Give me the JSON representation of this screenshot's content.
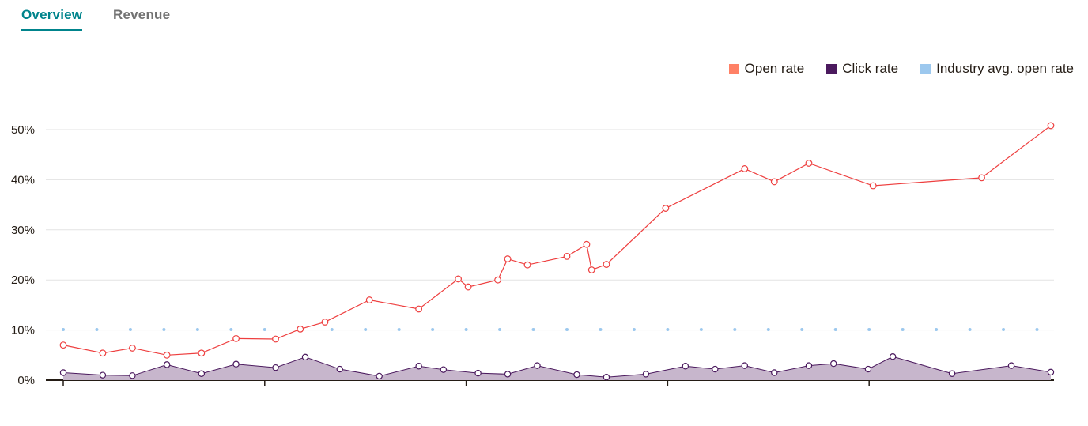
{
  "tabs": [
    {
      "label": "Overview",
      "active": true
    },
    {
      "label": "Revenue",
      "active": false
    }
  ],
  "colors": {
    "open_rate": "#ff8166",
    "open_rate_line": "#ee3f3f",
    "click_rate": "#4b1a5e",
    "click_fill": "#c7b6cc",
    "industry": "#9cc8ee"
  },
  "chart_data": {
    "type": "line",
    "legend_position": "top-right",
    "grid": true,
    "ylim": [
      0,
      50
    ],
    "yticks": [
      "0%",
      "10%",
      "20%",
      "30%",
      "40%",
      "50%"
    ],
    "ytick_values": [
      0,
      10,
      20,
      30,
      40,
      50
    ],
    "x_range": [
      0,
      100
    ],
    "x_major_ticks": [
      0,
      20.4,
      40.8,
      61.2,
      81.6
    ],
    "series": [
      {
        "name": "Open rate",
        "kind": "line",
        "x": [
          0,
          4,
          7,
          10.5,
          14,
          17.5,
          21.5,
          24,
          26.5,
          31,
          36,
          40,
          41,
          44,
          45,
          47,
          51,
          53,
          53.5,
          55,
          61,
          69,
          72,
          75.5,
          82,
          93,
          100
        ],
        "values": [
          7,
          5.4,
          6.4,
          5,
          5.4,
          8.3,
          8.2,
          10.2,
          11.6,
          16,
          14.2,
          20.2,
          18.6,
          20,
          24.2,
          23,
          24.7,
          27.1,
          22,
          23.1,
          34.3,
          42.2,
          39.6,
          43.3,
          38.8,
          40.4,
          50.8
        ]
      },
      {
        "name": "Click rate",
        "kind": "area",
        "x": [
          0,
          4,
          7,
          10.5,
          14,
          17.5,
          21.5,
          24.5,
          28,
          32,
          36,
          38.5,
          42,
          45,
          48,
          52,
          55,
          59,
          63,
          66,
          69,
          72,
          75.5,
          78,
          81.5,
          84,
          90,
          96,
          100
        ],
        "values": [
          1.5,
          1,
          0.9,
          3.1,
          1.3,
          3.2,
          2.5,
          4.6,
          2.2,
          0.8,
          2.8,
          2.1,
          1.4,
          1.2,
          2.9,
          1.1,
          0.6,
          1.2,
          2.8,
          2.2,
          2.9,
          1.5,
          2.9,
          3.3,
          2.2,
          4.7,
          1.3,
          2.9,
          1.6
        ]
      },
      {
        "name": "Industry avg. open rate",
        "kind": "dotted",
        "x": [
          0,
          3.4,
          6.8,
          10.2,
          13.6,
          17,
          20.4,
          27.2,
          30.6,
          34,
          37.4,
          40.8,
          44.2,
          47.6,
          51,
          54.4,
          57.8,
          61.2,
          64.6,
          68,
          71.4,
          74.8,
          78.2,
          81.6,
          85,
          88.4,
          91.8,
          95.2,
          98.6
        ],
        "values": [
          10.1,
          10.1,
          10.1,
          10.1,
          10.1,
          10.1,
          10.1,
          10.1,
          10.1,
          10.1,
          10.1,
          10.1,
          10.1,
          10.1,
          10.1,
          10.1,
          10.1,
          10.1,
          10.1,
          10.1,
          10.1,
          10.1,
          10.1,
          10.1,
          10.1,
          10.1,
          10.1,
          10.1,
          10.1
        ]
      }
    ]
  }
}
